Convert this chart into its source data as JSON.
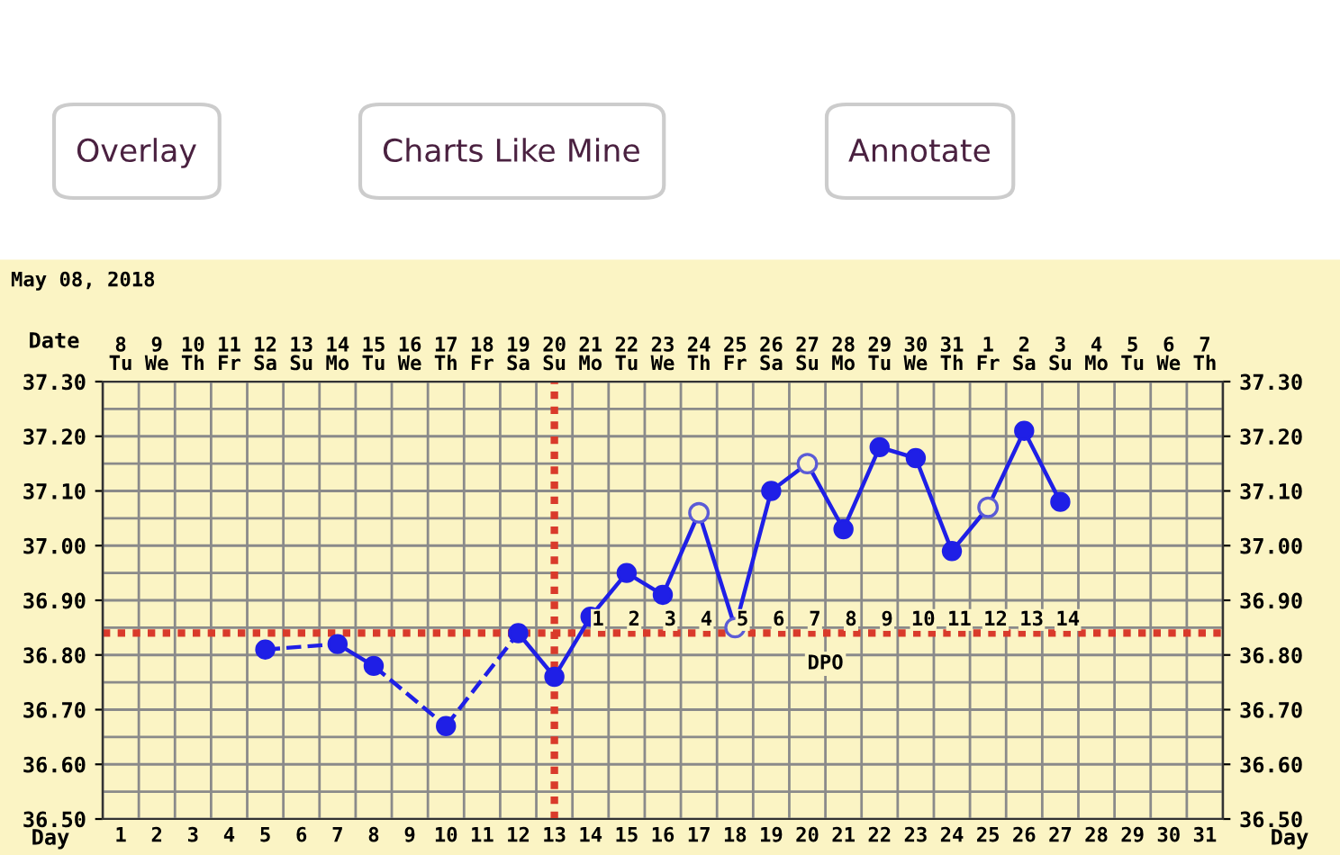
{
  "chart_data": {
    "type": "line",
    "title": "May 08, 2018",
    "annotations": [
      "Overlay",
      "Charts Like Mine",
      "Annotate",
      "8\nTu",
      "9\nWe",
      "10\nTh",
      "11\nFr",
      "12\nSa",
      "13\nSu",
      "14\nMo",
      "15\nTu",
      "16\nWe",
      "17\nTh",
      "18\nFr",
      "19\nSa",
      "20\nSu",
      "21\nMo",
      "22\nTu",
      "23\nWe",
      "24\nTh",
      "25\nFr",
      "26\nSa",
      "27\nSu",
      "28\nMo",
      "29\nTu",
      "30\nWe",
      "31\nTh",
      "1\nFr",
      "2\nSa",
      "3\nSu",
      "4\nMo",
      "5\nTu",
      "6\nWe",
      "7\nTh",
      "1",
      "2",
      "3",
      "4",
      "5",
      "6",
      "7",
      "8",
      "9",
      "10",
      "11",
      "12",
      "13",
      "14",
      "DPO"
    ],
    "xlabel": "Day",
    "x2label": "Date",
    "xlim": [
      0.5,
      31.5
    ],
    "xticks": [
      1,
      2,
      3,
      4,
      5,
      6,
      7,
      8,
      9,
      10,
      11,
      12,
      13,
      14,
      15,
      16,
      17,
      18,
      19,
      20,
      21,
      22,
      23,
      24,
      25,
      26,
      27,
      28,
      29,
      30,
      31
    ],
    "ylim": [
      36.5,
      37.3
    ],
    "yticks": [
      {
        "value": 36.5,
        "label": "36.50"
      },
      {
        "value": 36.6,
        "label": "36.60"
      },
      {
        "value": 36.7,
        "label": "36.70"
      },
      {
        "value": 36.8,
        "label": "36.80"
      },
      {
        "value": 36.9,
        "label": "36.90"
      },
      {
        "value": 37.0,
        "label": "37.00"
      },
      {
        "value": 37.1,
        "label": "37.10"
      },
      {
        "value": 37.2,
        "label": "37.20"
      },
      {
        "value": 37.3,
        "label": "37.30"
      }
    ],
    "y2lim": [
      36.5,
      37.3
    ],
    "y2ticks": [
      {
        "value": 36.5,
        "label": "36.50"
      },
      {
        "value": 36.6,
        "label": "36.60"
      },
      {
        "value": 36.7,
        "label": "36.70"
      },
      {
        "value": 36.8,
        "label": "36.80"
      },
      {
        "value": 36.9,
        "label": "36.90"
      },
      {
        "value": 37.0,
        "label": "37.00"
      },
      {
        "value": 37.1,
        "label": "37.10"
      },
      {
        "value": 37.2,
        "label": "37.20"
      },
      {
        "value": 37.3,
        "label": "37.30"
      }
    ],
    "grid": true,
    "marker": "circle",
    "ref_lines": [
      {
        "axis": "y",
        "value": 36.84,
        "color": "#d93a2b",
        "line_style": "dotted"
      },
      {
        "axis": "x",
        "value": 13,
        "color": "#d93a2b",
        "line_style": "dotted"
      }
    ],
    "series": [
      {
        "color": "#1f1fe6",
        "x": [
          5,
          7,
          8,
          10,
          12,
          13,
          14,
          15,
          16,
          17,
          18,
          19,
          20,
          21,
          22,
          23,
          24,
          25,
          26,
          27
        ],
        "values": [
          36.81,
          36.82,
          36.78,
          36.67,
          36.84,
          36.76,
          36.87,
          36.95,
          36.91,
          37.06,
          36.85,
          37.1,
          37.15,
          37.03,
          37.18,
          37.16,
          36.99,
          37.07,
          37.21,
          37.08
        ]
      },
      {
        "type": "scatter",
        "color": "#5b5bd6",
        "x": [
          17,
          18,
          20,
          25
        ],
        "values": [
          37.06,
          36.85,
          37.15,
          37.07
        ]
      }
    ]
  }
}
